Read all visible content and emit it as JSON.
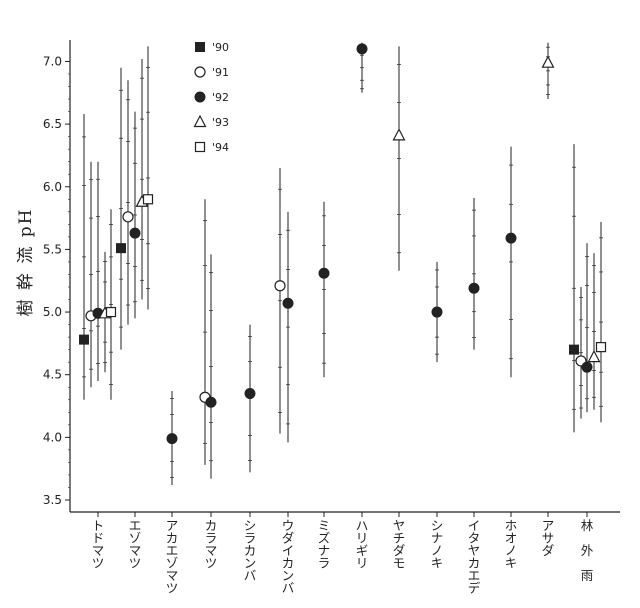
{
  "chart_data": {
    "type": "scatter",
    "ylabel": "樹 幹 流 pH",
    "ylim": [
      3.5,
      7.1
    ],
    "yticks": [
      "3.5",
      "4.0",
      "4.5",
      "5.0",
      "5.5",
      "6.0",
      "6.5",
      "7.0"
    ],
    "categories": [
      "トドマツ",
      "エゾマツ",
      "アカエゾマツ",
      "カラマツ",
      "シラカンバ",
      "ウダイカンバ",
      "ミズナラ",
      "ハリギリ",
      "ヤチダモ",
      "シナノキ",
      "イタヤカエデ",
      "ホオノキ",
      "アサダ",
      "林外雨"
    ],
    "series": [
      {
        "name": "'90",
        "marker": "filled-square",
        "points": [
          {
            "category": "トドマツ",
            "y": 4.78,
            "low": 4.3,
            "high": 6.58
          },
          {
            "category": "エゾマツ",
            "y": 5.51,
            "low": 4.7,
            "high": 6.95
          },
          {
            "category": "林外雨",
            "y": 4.7,
            "low": 4.04,
            "high": 6.34
          }
        ]
      },
      {
        "name": "'91",
        "marker": "open-circle",
        "points": [
          {
            "category": "トドマツ",
            "y": 4.97,
            "low": 4.4,
            "high": 6.2
          },
          {
            "category": "エゾマツ",
            "y": 5.76,
            "low": 4.9,
            "high": 6.85
          },
          {
            "category": "カラマツ",
            "y": 4.32,
            "low": 3.78,
            "high": 5.9
          },
          {
            "category": "ウダイカンバ",
            "y": 5.21,
            "low": 4.03,
            "high": 6.15
          },
          {
            "category": "林外雨",
            "y": 4.61,
            "low": 4.15,
            "high": 5.2
          }
        ]
      },
      {
        "name": "'92",
        "marker": "filled-circle",
        "points": [
          {
            "category": "トドマツ",
            "y": 4.99,
            "low": 4.45,
            "high": 6.2
          },
          {
            "category": "エゾマツ",
            "y": 5.63,
            "low": 4.95,
            "high": 6.6
          },
          {
            "category": "アカエゾマツ",
            "y": 3.99,
            "low": 3.62,
            "high": 4.37
          },
          {
            "category": "カラマツ",
            "y": 4.28,
            "low": 3.67,
            "high": 5.46
          },
          {
            "category": "シラカンバ",
            "y": 4.35,
            "low": 3.72,
            "high": 4.9
          },
          {
            "category": "ウダイカンバ",
            "y": 5.07,
            "low": 3.96,
            "high": 5.8
          },
          {
            "category": "ミズナラ",
            "y": 5.31,
            "low": 4.48,
            "high": 5.88
          },
          {
            "category": "ハリギリ",
            "y": 7.1,
            "low": 6.75,
            "high": 7.15
          },
          {
            "category": "シナノキ",
            "y": 5.0,
            "low": 4.6,
            "high": 5.4
          },
          {
            "category": "イタヤカエデ",
            "y": 5.19,
            "low": 4.7,
            "high": 5.91
          },
          {
            "category": "ホオノキ",
            "y": 5.59,
            "low": 4.48,
            "high": 6.32
          },
          {
            "category": "林外雨",
            "y": 4.56,
            "low": 4.2,
            "high": 5.55
          }
        ]
      },
      {
        "name": "'93",
        "marker": "open-triangle",
        "points": [
          {
            "category": "トドマツ",
            "y": 4.99,
            "low": 4.52,
            "high": 5.48
          },
          {
            "category": "エゾマツ",
            "y": 5.88,
            "low": 5.1,
            "high": 7.02
          },
          {
            "category": "ヤチダモ",
            "y": 6.41,
            "low": 5.33,
            "high": 7.12
          },
          {
            "category": "アサダ",
            "y": 6.99,
            "low": 6.7,
            "high": 7.15
          },
          {
            "category": "林外雨",
            "y": 4.64,
            "low": 4.22,
            "high": 5.47
          }
        ]
      },
      {
        "name": "'94",
        "marker": "open-square",
        "points": [
          {
            "category": "トドマツ",
            "y": 5.0,
            "low": 4.3,
            "high": 5.82
          },
          {
            "category": "エゾマツ",
            "y": 5.9,
            "low": 5.02,
            "high": 7.12
          },
          {
            "category": "林外雨",
            "y": 4.72,
            "low": 4.12,
            "high": 5.72
          }
        ]
      }
    ],
    "legend": {
      "position": "top-left inside plot"
    },
    "grid": false
  }
}
